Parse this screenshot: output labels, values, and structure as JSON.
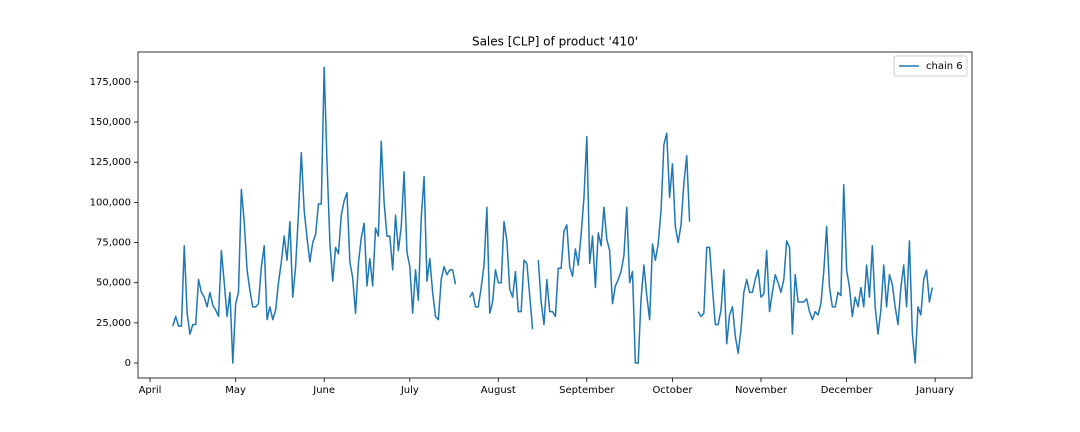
{
  "chart_data": {
    "type": "line",
    "title": "Sales [CLP] of product '410'",
    "categories": [
      "April",
      null,
      null,
      null,
      null,
      null,
      null,
      null,
      null,
      null,
      null,
      null,
      null,
      null,
      null,
      null,
      null,
      null,
      null,
      null,
      null,
      null,
      null,
      null,
      null,
      null,
      null,
      null,
      null,
      null,
      "May",
      null,
      null,
      null,
      null,
      null,
      null,
      null,
      null,
      null,
      null,
      null,
      null,
      null,
      null,
      null,
      null,
      null,
      null,
      null,
      null,
      null,
      null,
      null,
      null,
      null,
      null,
      null,
      null,
      null,
      null,
      "June",
      null,
      null,
      null,
      null,
      null,
      null,
      null,
      null,
      null,
      null,
      null,
      null,
      null,
      null,
      null,
      null,
      null,
      null,
      null,
      null,
      null,
      null,
      null,
      null,
      null,
      null,
      null,
      null,
      null,
      "July",
      null,
      null,
      null,
      null,
      null,
      null,
      null,
      null,
      null,
      null,
      null,
      null,
      null,
      null,
      null,
      null,
      null,
      null,
      null,
      null,
      null,
      null,
      null,
      null,
      null,
      null,
      null,
      null,
      null,
      null,
      "August",
      null,
      null,
      null,
      null,
      null,
      null,
      null,
      null,
      null,
      null,
      null,
      null,
      null,
      null,
      null,
      null,
      null,
      null,
      null,
      null,
      null,
      null,
      null,
      null,
      null,
      null,
      null,
      null,
      null,
      null,
      "September",
      null,
      null,
      null,
      null,
      null,
      null,
      null,
      null,
      null,
      null,
      null,
      null,
      null,
      null,
      null,
      null,
      null,
      null,
      null,
      null,
      null,
      null,
      null,
      null,
      null,
      null,
      null,
      null,
      null,
      "October",
      null,
      null,
      null,
      null,
      null,
      null,
      null,
      null,
      null,
      null,
      null,
      null,
      null,
      null,
      null,
      null,
      null,
      null,
      null,
      null,
      null,
      null,
      null,
      null,
      null,
      null,
      null,
      null,
      null,
      null,
      "November",
      null,
      null,
      null,
      null,
      null,
      null,
      null,
      null,
      null,
      null,
      null,
      null,
      null,
      null,
      null,
      null,
      null,
      null,
      null,
      null,
      null,
      null,
      null,
      null,
      null,
      null,
      null,
      null,
      null,
      "December",
      null,
      null,
      null,
      null,
      null,
      null,
      null,
      null,
      null,
      null,
      null,
      null,
      null,
      null,
      null,
      null,
      null,
      null,
      null,
      null,
      null,
      null,
      null,
      null,
      null,
      null,
      null,
      null,
      null,
      null,
      "January"
    ],
    "series": [
      {
        "name": "chain 6",
        "color": "#1f77b4",
        "values": [
          null,
          null,
          null,
          null,
          null,
          null,
          null,
          null,
          23000,
          29000,
          23000,
          23000,
          73000,
          31000,
          18000,
          24000,
          24000,
          52000,
          44000,
          41000,
          35000,
          44000,
          36000,
          33000,
          29000,
          70000,
          50000,
          29000,
          44000,
          0,
          37000,
          44000,
          108000,
          88000,
          58000,
          45000,
          35000,
          35000,
          37000,
          60000,
          73000,
          27000,
          35000,
          27000,
          33000,
          50000,
          63000,
          79000,
          64000,
          88000,
          41000,
          60000,
          93000,
          131000,
          95000,
          78000,
          63000,
          75000,
          80000,
          99000,
          99000,
          184000,
          125000,
          75000,
          51000,
          72000,
          68000,
          92000,
          101000,
          106000,
          63000,
          53000,
          31000,
          62000,
          78000,
          87000,
          48000,
          65000,
          48000,
          84000,
          79000,
          138000,
          100000,
          79000,
          79000,
          58000,
          92000,
          70000,
          85000,
          119000,
          69000,
          60000,
          31000,
          58000,
          39000,
          90000,
          116000,
          51000,
          65000,
          44000,
          29000,
          27000,
          52000,
          60000,
          55000,
          58000,
          58000,
          49000,
          null,
          null,
          null,
          null,
          41000,
          44000,
          35000,
          35000,
          47000,
          61000,
          97000,
          31000,
          38000,
          58000,
          50000,
          50000,
          88000,
          76000,
          46000,
          41000,
          57000,
          32000,
          32000,
          64000,
          62000,
          42000,
          21000,
          null,
          64000,
          38000,
          24000,
          52000,
          32000,
          32000,
          29000,
          59000,
          59000,
          82000,
          86000,
          60000,
          54000,
          71000,
          61000,
          80000,
          103000,
          141000,
          62000,
          79000,
          47000,
          81000,
          73000,
          97000,
          77000,
          70000,
          37000,
          48000,
          52000,
          57000,
          67000,
          97000,
          50000,
          57000,
          0,
          0,
          40000,
          61000,
          42000,
          27000,
          74000,
          64000,
          74000,
          95000,
          136000,
          143000,
          103000,
          124000,
          85000,
          75000,
          86000,
          112000,
          129000,
          88000,
          null,
          null,
          32000,
          29000,
          31000,
          72000,
          72000,
          47000,
          24000,
          24000,
          33000,
          58000,
          12000,
          30000,
          35000,
          17000,
          6000,
          21000,
          44000,
          52000,
          44000,
          44000,
          52000,
          58000,
          41000,
          43000,
          70000,
          32000,
          44000,
          55000,
          50000,
          44000,
          52000,
          76000,
          72000,
          18000,
          55000,
          38000,
          38000,
          38000,
          40000,
          32000,
          27000,
          32000,
          30000,
          37000,
          57000,
          85000,
          47000,
          35000,
          35000,
          44000,
          42000,
          111000,
          58000,
          47000,
          29000,
          41000,
          35000,
          47000,
          35000,
          61000,
          41000,
          73000,
          35000,
          18000,
          33000,
          61000,
          35000,
          55000,
          49000,
          35000,
          24000,
          47000,
          61000,
          35000,
          76000,
          19000,
          0,
          35000,
          30000,
          52000,
          58000,
          38000,
          47000,
          null
        ]
      }
    ],
    "ylim": [
      -9300,
      193600
    ],
    "yticks": [
      0,
      {
        "value": 25000,
        "label": "25,000"
      },
      {
        "value": 50000,
        "label": "50,000"
      },
      {
        "value": 75000,
        "label": "75,000"
      },
      {
        "value": 100000,
        "label": "100,000"
      },
      {
        "value": 125000,
        "label": "125,000"
      },
      {
        "value": 150000,
        "label": "150,000"
      },
      {
        "value": 175000,
        "label": "175,000"
      }
    ],
    "grid": false,
    "legend": "upper right"
  }
}
